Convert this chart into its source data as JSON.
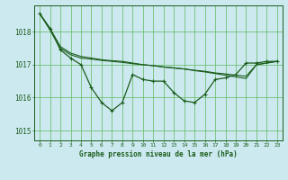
{
  "title": "Graphe pression niveau de la mer (hPa)",
  "x_ticks": [
    0,
    1,
    2,
    3,
    4,
    5,
    6,
    7,
    8,
    9,
    10,
    11,
    12,
    13,
    14,
    15,
    16,
    17,
    18,
    19,
    20,
    21,
    22,
    23
  ],
  "ylim": [
    1014.7,
    1018.8
  ],
  "yticks": [
    1015,
    1016,
    1017,
    1018
  ],
  "background_color": "#cce9f0",
  "grid_color": "#66bb66",
  "line_color": "#1a5c1a",
  "series": {
    "main": [
      1018.55,
      1018.1,
      1017.45,
      1017.2,
      1017.0,
      1016.3,
      1015.85,
      1015.6,
      1015.85,
      1016.7,
      1016.55,
      1016.5,
      1016.5,
      1016.15,
      1015.9,
      1015.85,
      1016.1,
      1016.55,
      1016.6,
      1016.7,
      1017.05,
      1017.05,
      1017.1,
      1017.1
    ],
    "smooth1": [
      1018.55,
      1018.1,
      1017.55,
      1017.35,
      1017.25,
      1017.2,
      1017.15,
      1017.12,
      1017.1,
      1017.05,
      1017.0,
      1016.97,
      1016.93,
      1016.9,
      1016.87,
      1016.82,
      1016.78,
      1016.73,
      1016.68,
      1016.63,
      1016.58,
      1017.0,
      1017.05,
      1017.1
    ],
    "smooth2": [
      1018.55,
      1018.05,
      1017.5,
      1017.3,
      1017.2,
      1017.17,
      1017.13,
      1017.1,
      1017.07,
      1017.03,
      1017.0,
      1016.97,
      1016.93,
      1016.9,
      1016.87,
      1016.83,
      1016.8,
      1016.75,
      1016.72,
      1016.68,
      1016.65,
      1017.0,
      1017.05,
      1017.1
    ]
  }
}
